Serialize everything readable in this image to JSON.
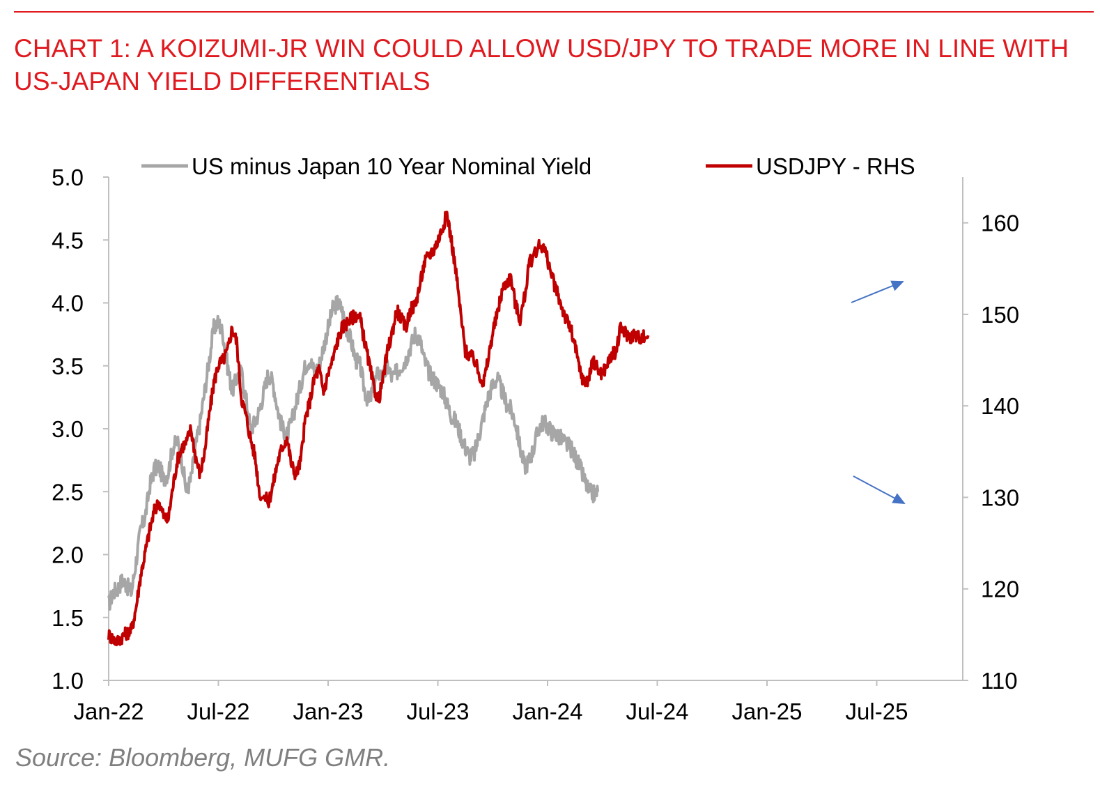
{
  "title": "CHART 1: A KOIZUMI-JR WIN COULD ALLOW USD/JPY TO TRADE MORE IN LINE WITH US-JAPAN YIELD DIFFERENTIALS",
  "source": "Source: Bloomberg, MUFG GMR.",
  "colors": {
    "accent": "#e0191f",
    "rule": "#e0191f",
    "yield": "#a6a6a6",
    "usdjpy": "#c00000",
    "arrow": "#4472c4",
    "axis": "#bfbfbf",
    "source": "#7f7f7f"
  },
  "chart_data": {
    "type": "line",
    "title": "CHART 1: A KOIZUMI-JR WIN COULD ALLOW USD/JPY TO TRADE MORE IN LINE WITH US-JAPAN YIELD DIFFERENTIALS",
    "xlabel": "",
    "ylabel": "",
    "x_tick_labels": [
      "Jan-22",
      "Jul-22",
      "Jan-23",
      "Jul-23",
      "Jan-24",
      "Jul-24",
      "Jan-25",
      "Jul-25"
    ],
    "x_range": [
      "Jan-22",
      "Sep-25"
    ],
    "y_left": {
      "min": 1.0,
      "max": 5.0,
      "ticks": [
        "1.0",
        "1.5",
        "2.0",
        "2.5",
        "3.0",
        "3.5",
        "4.0",
        "4.5",
        "5.0"
      ]
    },
    "y_right": {
      "min": 110,
      "max": 165,
      "ticks": [
        "110",
        "120",
        "130",
        "140",
        "150",
        "160"
      ]
    },
    "legend": {
      "position": "top",
      "entries": [
        "US minus Japan 10 Year Nominal Yield",
        "USDJPY - RHS"
      ]
    },
    "series": [
      {
        "name": "US minus Japan 10 Year Nominal Yield",
        "axis": "left",
        "points": [
          [
            0.0,
            1.6
          ],
          [
            0.25,
            1.7
          ],
          [
            0.5,
            1.73
          ],
          [
            0.75,
            1.8
          ],
          [
            1.0,
            1.75
          ],
          [
            1.25,
            1.7
          ],
          [
            1.5,
            1.95
          ],
          [
            1.75,
            2.2
          ],
          [
            2.0,
            2.3
          ],
          [
            2.25,
            2.55
          ],
          [
            2.5,
            2.68
          ],
          [
            2.75,
            2.7
          ],
          [
            3.0,
            2.6
          ],
          [
            3.25,
            2.65
          ],
          [
            3.5,
            2.85
          ],
          [
            3.75,
            2.9
          ],
          [
            4.0,
            2.75
          ],
          [
            4.25,
            2.5
          ],
          [
            4.5,
            2.6
          ],
          [
            4.75,
            2.85
          ],
          [
            5.0,
            3.05
          ],
          [
            5.25,
            3.3
          ],
          [
            5.5,
            3.55
          ],
          [
            5.75,
            3.8
          ],
          [
            6.0,
            3.85
          ],
          [
            6.25,
            3.75
          ],
          [
            6.5,
            3.5
          ],
          [
            6.75,
            3.3
          ],
          [
            7.0,
            3.4
          ],
          [
            7.25,
            3.45
          ],
          [
            7.5,
            3.25
          ],
          [
            7.75,
            3.0
          ],
          [
            8.0,
            3.05
          ],
          [
            8.25,
            3.15
          ],
          [
            8.5,
            3.3
          ],
          [
            8.75,
            3.45
          ],
          [
            9.0,
            3.35
          ],
          [
            9.25,
            3.15
          ],
          [
            9.5,
            3.0
          ],
          [
            9.75,
            2.95
          ],
          [
            10.0,
            3.05
          ],
          [
            10.25,
            3.2
          ],
          [
            10.5,
            3.35
          ],
          [
            10.75,
            3.5
          ],
          [
            11.0,
            3.55
          ],
          [
            11.25,
            3.45
          ],
          [
            11.5,
            3.5
          ],
          [
            11.75,
            3.65
          ],
          [
            12.0,
            3.8
          ],
          [
            12.25,
            3.95
          ],
          [
            12.5,
            4.0
          ],
          [
            12.75,
            3.95
          ],
          [
            13.0,
            3.8
          ],
          [
            13.25,
            3.7
          ],
          [
            13.5,
            3.55
          ],
          [
            13.75,
            3.5
          ],
          [
            14.0,
            3.3
          ],
          [
            14.25,
            3.2
          ],
          [
            14.5,
            3.35
          ],
          [
            14.75,
            3.45
          ],
          [
            15.0,
            3.4
          ],
          [
            15.25,
            3.5
          ],
          [
            15.5,
            3.4
          ],
          [
            15.75,
            3.45
          ],
          [
            16.0,
            3.5
          ],
          [
            16.25,
            3.55
          ],
          [
            16.5,
            3.65
          ],
          [
            16.75,
            3.75
          ],
          [
            17.0,
            3.72
          ],
          [
            17.25,
            3.55
          ],
          [
            17.5,
            3.45
          ],
          [
            17.75,
            3.4
          ],
          [
            18.0,
            3.35
          ],
          [
            18.25,
            3.3
          ],
          [
            18.5,
            3.2
          ],
          [
            18.75,
            3.1
          ],
          [
            19.0,
            3.05
          ],
          [
            19.25,
            2.95
          ],
          [
            19.5,
            2.85
          ],
          [
            19.75,
            2.78
          ],
          [
            20.0,
            2.8
          ],
          [
            20.25,
            2.95
          ],
          [
            20.5,
            3.1
          ],
          [
            20.75,
            3.25
          ],
          [
            21.0,
            3.35
          ],
          [
            21.25,
            3.4
          ],
          [
            21.5,
            3.3
          ],
          [
            21.75,
            3.2
          ],
          [
            22.0,
            3.15
          ],
          [
            22.25,
            3.05
          ],
          [
            22.5,
            2.85
          ],
          [
            22.75,
            2.7
          ],
          [
            23.0,
            2.75
          ],
          [
            23.25,
            2.85
          ],
          [
            23.5,
            3.0
          ],
          [
            23.75,
            3.05
          ],
          [
            24.0,
            3.02
          ],
          [
            24.25,
            2.97
          ],
          [
            24.5,
            2.95
          ],
          [
            24.75,
            2.92
          ],
          [
            25.0,
            2.88
          ],
          [
            25.25,
            2.85
          ],
          [
            25.5,
            2.78
          ],
          [
            25.75,
            2.7
          ],
          [
            26.0,
            2.6
          ],
          [
            26.25,
            2.5
          ],
          [
            26.5,
            2.48
          ],
          [
            26.75,
            2.5
          ]
        ]
      },
      {
        "name": "USDJPY - RHS",
        "axis": "right",
        "points": [
          [
            0.0,
            115.0
          ],
          [
            0.25,
            114.5
          ],
          [
            0.5,
            114.3
          ],
          [
            0.75,
            114.8
          ],
          [
            1.0,
            115.2
          ],
          [
            1.25,
            115.5
          ],
          [
            1.5,
            118.0
          ],
          [
            1.75,
            121.5
          ],
          [
            2.0,
            124.0
          ],
          [
            2.25,
            126.5
          ],
          [
            2.5,
            128.5
          ],
          [
            2.75,
            129.5
          ],
          [
            3.0,
            128.0
          ],
          [
            3.25,
            127.5
          ],
          [
            3.5,
            131.0
          ],
          [
            3.75,
            134.0
          ],
          [
            4.0,
            135.5
          ],
          [
            4.25,
            136.0
          ],
          [
            4.5,
            137.5
          ],
          [
            4.75,
            134.5
          ],
          [
            5.0,
            132.5
          ],
          [
            5.25,
            135.0
          ],
          [
            5.5,
            139.0
          ],
          [
            5.75,
            142.5
          ],
          [
            6.0,
            144.5
          ],
          [
            6.25,
            145.0
          ],
          [
            6.5,
            146.0
          ],
          [
            6.75,
            148.5
          ],
          [
            7.0,
            147.0
          ],
          [
            7.25,
            141.0
          ],
          [
            7.5,
            139.0
          ],
          [
            7.75,
            136.5
          ],
          [
            8.0,
            134.5
          ],
          [
            8.25,
            130.5
          ],
          [
            8.75,
            129.5
          ],
          [
            9.0,
            131.5
          ],
          [
            9.25,
            134.0
          ],
          [
            9.5,
            135.5
          ],
          [
            9.75,
            136.5
          ],
          [
            10.0,
            133.5
          ],
          [
            10.25,
            132.5
          ],
          [
            10.5,
            134.0
          ],
          [
            10.75,
            138.5
          ],
          [
            11.0,
            140.5
          ],
          [
            11.25,
            143.0
          ],
          [
            11.5,
            144.0
          ],
          [
            11.75,
            141.5
          ],
          [
            12.0,
            143.5
          ],
          [
            12.25,
            145.0
          ],
          [
            12.5,
            147.0
          ],
          [
            12.75,
            148.5
          ],
          [
            13.0,
            149.0
          ],
          [
            13.25,
            149.5
          ],
          [
            13.5,
            150.0
          ],
          [
            13.75,
            149.5
          ],
          [
            14.0,
            147.0
          ],
          [
            14.25,
            144.5
          ],
          [
            14.5,
            142.0
          ],
          [
            14.75,
            140.5
          ],
          [
            15.0,
            143.0
          ],
          [
            15.25,
            146.0
          ],
          [
            15.5,
            148.0
          ],
          [
            15.75,
            150.5
          ],
          [
            16.0,
            149.5
          ],
          [
            16.25,
            148.5
          ],
          [
            16.5,
            150.5
          ],
          [
            16.75,
            151.0
          ],
          [
            17.0,
            153.0
          ],
          [
            17.25,
            155.5
          ],
          [
            17.5,
            156.5
          ],
          [
            17.75,
            157.0
          ],
          [
            18.0,
            158.0
          ],
          [
            18.25,
            159.5
          ],
          [
            18.5,
            161.0
          ],
          [
            18.75,
            158.0
          ],
          [
            19.0,
            154.5
          ],
          [
            19.25,
            150.0
          ],
          [
            19.5,
            146.0
          ],
          [
            19.75,
            145.5
          ],
          [
            20.0,
            145.0
          ],
          [
            20.25,
            143.5
          ],
          [
            20.5,
            142.5
          ],
          [
            20.75,
            145.0
          ],
          [
            21.0,
            148.0
          ],
          [
            21.25,
            150.0
          ],
          [
            21.5,
            152.5
          ],
          [
            21.75,
            153.5
          ],
          [
            22.0,
            154.0
          ],
          [
            22.25,
            151.0
          ],
          [
            22.5,
            149.5
          ],
          [
            22.75,
            152.0
          ],
          [
            23.0,
            155.5
          ],
          [
            23.5,
            157.5
          ],
          [
            23.75,
            157.5
          ],
          [
            24.0,
            156.0
          ],
          [
            24.25,
            154.0
          ],
          [
            24.5,
            152.5
          ],
          [
            24.75,
            151.0
          ],
          [
            25.0,
            149.5
          ],
          [
            25.25,
            148.5
          ],
          [
            25.5,
            146.5
          ],
          [
            25.75,
            144.0
          ],
          [
            26.0,
            142.5
          ],
          [
            26.25,
            143.0
          ],
          [
            26.5,
            145.0
          ],
          [
            26.75,
            144.0
          ],
          [
            27.0,
            143.5
          ],
          [
            27.25,
            144.5
          ],
          [
            27.5,
            145.5
          ],
          [
            27.75,
            146.0
          ],
          [
            28.0,
            148.5
          ],
          [
            28.25,
            148.0
          ],
          [
            28.5,
            147.5
          ],
          [
            28.75,
            147.8
          ],
          [
            29.0,
            147.5
          ],
          [
            29.25,
            147.5
          ],
          [
            29.5,
            147.7
          ]
        ]
      }
    ],
    "annotations": [
      "arrow-up-usdjpy",
      "arrow-down-yield"
    ]
  }
}
